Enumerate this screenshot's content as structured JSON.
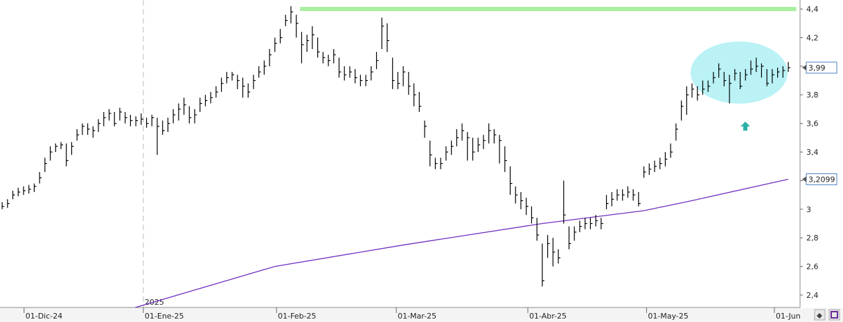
{
  "chart_data": {
    "type": "ohlc",
    "color": "#000000",
    "xlim": [
      -0.4,
      149.2
    ],
    "ylim": [
      2.313,
      4.463
    ],
    "yticks": [
      {
        "value": 2.4,
        "label": "2,4"
      },
      {
        "value": 2.6,
        "label": "2,6"
      },
      {
        "value": 2.8,
        "label": "2,8"
      },
      3,
      {
        "value": 3.2,
        "label": "3,2"
      },
      {
        "value": 3.4,
        "label": "3,4"
      },
      {
        "value": 3.6,
        "label": "3,6"
      },
      {
        "value": 3.8,
        "label": "3,8"
      },
      {
        "value": 4.0,
        "label": "4"
      },
      {
        "value": 4.2,
        "label": "4,2"
      },
      {
        "value": 4.4,
        "label": "4,4"
      }
    ],
    "xticks": [
      {
        "value": 4.1,
        "label": "01-Dic-24"
      },
      {
        "value": 26.4,
        "label": "01-Ene-25"
      },
      {
        "value": 51.3,
        "label": "01-Feb-25"
      },
      {
        "value": 73.7,
        "label": "01-Mar-25"
      },
      {
        "value": 98.3,
        "label": "01-Abr-25"
      },
      {
        "value": 120.5,
        "label": "01-May-25"
      },
      {
        "value": 144.4,
        "label": "01-Jun"
      }
    ],
    "year_label": {
      "value": 26.4,
      "label": "2025"
    },
    "high": [
      3.05,
      3.07,
      3.13,
      3.15,
      3.16,
      3.17,
      3.18,
      3.26,
      3.36,
      3.44,
      3.46,
      3.47,
      3.46,
      3.47,
      3.56,
      3.6,
      3.6,
      3.58,
      3.63,
      3.68,
      3.7,
      3.68,
      3.71,
      3.68,
      3.66,
      3.65,
      3.67,
      3.64,
      3.66,
      3.64,
      3.62,
      3.64,
      3.7,
      3.74,
      3.78,
      3.72,
      3.7,
      3.78,
      3.8,
      3.82,
      3.86,
      3.92,
      3.96,
      3.96,
      3.94,
      3.92,
      3.88,
      3.94,
      4.0,
      4.04,
      4.12,
      4.2,
      4.26,
      4.36,
      4.42,
      4.36,
      4.24,
      4.22,
      4.28,
      4.2,
      4.1,
      4.08,
      4.12,
      4.06,
      4.0,
      4.0,
      3.98,
      3.94,
      3.94,
      4.0,
      4.1,
      4.34,
      4.3,
      4.06,
      3.96,
      4.0,
      3.96,
      3.88,
      3.82,
      3.62,
      3.48,
      3.36,
      3.36,
      3.44,
      3.48,
      3.56,
      3.6,
      3.54,
      3.5,
      3.5,
      3.52,
      3.6,
      3.56,
      3.52,
      3.44,
      3.3,
      3.16,
      3.12,
      3.08,
      3.02,
      2.94,
      2.76,
      2.82,
      2.8,
      2.72,
      3.2,
      2.88,
      2.88,
      2.92,
      2.94,
      2.94,
      2.96,
      2.94,
      3.1,
      3.12,
      3.14,
      3.14,
      3.16,
      3.14,
      3.12,
      3.3,
      3.32,
      3.34,
      3.36,
      3.4,
      3.46,
      3.6,
      3.76,
      3.86,
      3.88,
      3.86,
      3.9,
      3.9,
      3.96,
      4.02,
      3.96,
      3.94,
      3.98,
      3.96,
      3.98,
      4.04,
      4.06,
      4.02,
      3.98,
      3.98,
      3.99,
      4.0,
      4.03
    ],
    "low": [
      3.0,
      3.01,
      3.07,
      3.09,
      3.1,
      3.11,
      3.12,
      3.18,
      3.26,
      3.34,
      3.4,
      3.42,
      3.3,
      3.38,
      3.48,
      3.52,
      3.52,
      3.5,
      3.54,
      3.58,
      3.62,
      3.58,
      3.62,
      3.6,
      3.58,
      3.58,
      3.59,
      3.57,
      3.58,
      3.38,
      3.52,
      3.54,
      3.6,
      3.62,
      3.66,
      3.6,
      3.6,
      3.68,
      3.72,
      3.74,
      3.78,
      3.82,
      3.88,
      3.9,
      3.84,
      3.78,
      3.78,
      3.84,
      3.92,
      3.94,
      4.0,
      4.1,
      4.16,
      4.28,
      4.3,
      4.2,
      4.02,
      4.1,
      4.12,
      4.06,
      4.02,
      4.0,
      4.02,
      3.92,
      3.9,
      3.92,
      3.88,
      3.86,
      3.86,
      3.9,
      3.98,
      4.12,
      4.1,
      3.84,
      3.84,
      3.86,
      3.8,
      3.72,
      3.68,
      3.5,
      3.3,
      3.28,
      3.28,
      3.34,
      3.38,
      3.44,
      3.48,
      3.34,
      3.34,
      3.4,
      3.42,
      3.46,
      3.46,
      3.32,
      3.26,
      3.1,
      3.04,
      3.0,
      2.96,
      2.9,
      2.78,
      2.46,
      2.66,
      2.6,
      2.62,
      2.9,
      2.72,
      2.78,
      2.84,
      2.86,
      2.86,
      2.88,
      2.86,
      3.0,
      3.02,
      3.06,
      3.06,
      3.08,
      3.06,
      3.02,
      3.22,
      3.24,
      3.26,
      3.28,
      3.3,
      3.36,
      3.48,
      3.62,
      3.66,
      3.78,
      3.76,
      3.8,
      3.82,
      3.88,
      3.92,
      3.86,
      3.74,
      3.9,
      3.84,
      3.9,
      3.94,
      3.96,
      3.92,
      3.86,
      3.88,
      3.92,
      3.92,
      3.96
    ],
    "close": [
      3.02,
      3.04,
      3.1,
      3.12,
      3.13,
      3.14,
      3.16,
      3.22,
      3.32,
      3.4,
      3.44,
      3.45,
      3.34,
      3.44,
      3.52,
      3.58,
      3.56,
      3.55,
      3.6,
      3.64,
      3.67,
      3.6,
      3.68,
      3.64,
      3.62,
      3.62,
      3.63,
      3.6,
      3.64,
      3.58,
      3.55,
      3.6,
      3.66,
      3.7,
      3.73,
      3.64,
      3.66,
      3.74,
      3.76,
      3.78,
      3.82,
      3.88,
      3.92,
      3.94,
      3.9,
      3.86,
      3.82,
      3.9,
      3.96,
      4.0,
      4.08,
      4.16,
      4.2,
      4.32,
      4.38,
      4.3,
      4.15,
      4.18,
      4.22,
      4.1,
      4.06,
      4.04,
      4.08,
      3.96,
      3.94,
      3.96,
      3.92,
      3.9,
      3.9,
      3.96,
      4.04,
      4.28,
      4.18,
      3.9,
      3.88,
      3.96,
      3.86,
      3.8,
      3.72,
      3.58,
      3.38,
      3.32,
      3.32,
      3.4,
      3.44,
      3.5,
      3.55,
      3.5,
      3.4,
      3.45,
      3.48,
      3.55,
      3.52,
      3.48,
      3.34,
      3.18,
      3.1,
      3.06,
      3.02,
      2.94,
      2.82,
      2.5,
      2.76,
      2.7,
      2.66,
      2.96,
      2.76,
      2.84,
      2.88,
      2.9,
      2.9,
      2.92,
      2.9,
      3.04,
      3.07,
      3.1,
      3.1,
      3.12,
      3.1,
      3.04,
      3.26,
      3.28,
      3.3,
      3.32,
      3.35,
      3.4,
      3.56,
      3.72,
      3.8,
      3.84,
      3.8,
      3.84,
      3.86,
      3.92,
      3.98,
      3.9,
      3.88,
      3.95,
      3.86,
      3.94,
      3.98,
      4.0,
      4.0,
      3.88,
      3.94,
      3.96,
      3.97,
      3.99
    ],
    "moving_average": {
      "color": "#7030c0",
      "x": [
        24.9,
        51,
        75,
        101,
        120,
        129,
        147
      ],
      "values": [
        2.313,
        2.6,
        2.75,
        2.9,
        2.99,
        3.06,
        3.2099
      ]
    },
    "resistance": {
      "color": "#a8f0a0",
      "value": 4.4,
      "x": [
        55.7,
        148.5
      ]
    },
    "price_labels": [
      {
        "value": 3.99,
        "label": "3,99"
      },
      {
        "value": 3.2099,
        "label": "3,2099"
      }
    ]
  }
}
